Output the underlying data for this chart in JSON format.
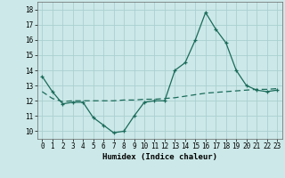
{
  "x": [
    0,
    1,
    2,
    3,
    4,
    5,
    6,
    7,
    8,
    9,
    10,
    11,
    12,
    13,
    14,
    15,
    16,
    17,
    18,
    19,
    20,
    21,
    22,
    23
  ],
  "y_curve": [
    13.6,
    12.6,
    11.8,
    11.9,
    11.9,
    10.9,
    10.4,
    9.9,
    10.0,
    11.0,
    11.9,
    12.0,
    12.0,
    14.0,
    14.5,
    16.0,
    17.8,
    16.7,
    15.8,
    14.0,
    13.0,
    12.7,
    12.6,
    12.7
  ],
  "y_line": [
    12.6,
    12.15,
    11.95,
    12.0,
    12.0,
    12.0,
    12.0,
    12.0,
    12.05,
    12.05,
    12.1,
    12.1,
    12.15,
    12.2,
    12.3,
    12.4,
    12.5,
    12.55,
    12.6,
    12.65,
    12.7,
    12.75,
    12.75,
    12.8
  ],
  "bg_color": "#cce8e8",
  "grid_color": "#aad0d0",
  "line_color": "#1a6b5a",
  "xlabel": "Humidex (Indice chaleur)",
  "ylim": [
    9.5,
    18.5
  ],
  "xlim": [
    -0.5,
    23.5
  ],
  "yticks": [
    10,
    11,
    12,
    13,
    14,
    15,
    16,
    17,
    18
  ],
  "xticks": [
    0,
    1,
    2,
    3,
    4,
    5,
    6,
    7,
    8,
    9,
    10,
    11,
    12,
    13,
    14,
    15,
    16,
    17,
    18,
    19,
    20,
    21,
    22,
    23
  ],
  "tick_fontsize": 5.5,
  "xlabel_fontsize": 6.5
}
